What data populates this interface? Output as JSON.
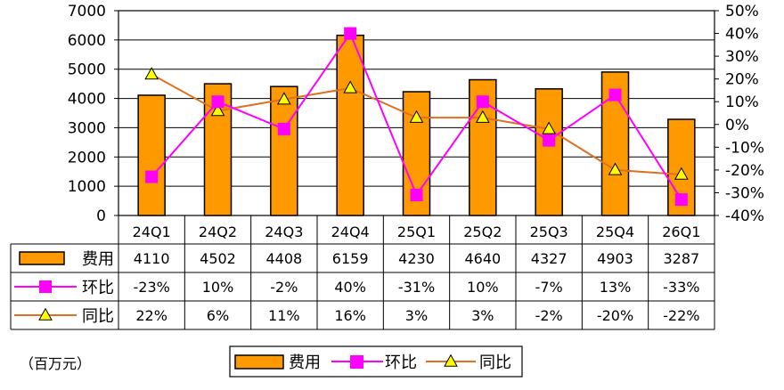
{
  "chart_data": {
    "type": "bar+line",
    "categories": [
      "24Q1",
      "24Q2",
      "24Q3",
      "24Q4",
      "25Q1",
      "25Q2",
      "25Q3",
      "25Q4",
      "26Q1"
    ],
    "series": [
      {
        "name": "费用",
        "type": "bar",
        "axis": "left",
        "values": [
          4110,
          4502,
          4408,
          6159,
          4230,
          4640,
          4327,
          4903,
          3287
        ]
      },
      {
        "name": "环比",
        "type": "line",
        "axis": "right",
        "values": [
          -23,
          10,
          -2,
          40,
          -31,
          10,
          -7,
          13,
          -33
        ]
      },
      {
        "name": "同比",
        "type": "line",
        "axis": "right",
        "values": [
          22,
          6,
          11,
          16,
          3,
          3,
          -2,
          -20,
          -22
        ]
      }
    ],
    "table_rows": [
      [
        "4110",
        "4502",
        "4408",
        "6159",
        "4230",
        "4640",
        "4327",
        "4903",
        "3287"
      ],
      [
        "-23%",
        "10%",
        "-2%",
        "40%",
        "-31%",
        "10%",
        "-7%",
        "13%",
        "-33%"
      ],
      [
        "22%",
        "6%",
        "11%",
        "16%",
        "3%",
        "3%",
        "-2%",
        "-20%",
        "-22%"
      ]
    ],
    "y_left": {
      "min": 0,
      "max": 7000,
      "ticks": [
        "0",
        "1000",
        "2000",
        "3000",
        "4000",
        "5000",
        "6000",
        "7000"
      ]
    },
    "y_right": {
      "min": -40,
      "max": 50,
      "ticks": [
        "-40%",
        "-30%",
        "-20%",
        "-10%",
        "0%",
        "10%",
        "20%",
        "30%",
        "40%",
        "50%"
      ]
    },
    "unit_note": "（百万元）",
    "legend_placement": "bottom",
    "grid": true,
    "colors": {
      "bar": "#ff9900",
      "mom": "#ff00ff",
      "yoy": "#e07020",
      "yoy_marker": "#ffff00"
    }
  }
}
